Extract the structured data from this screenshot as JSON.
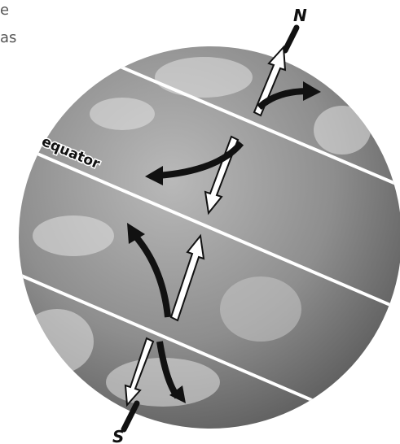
{
  "labels": {
    "corner_top": "e",
    "corner_bottom": "as",
    "north": "N",
    "south": "S",
    "equator": "equator"
  }
}
